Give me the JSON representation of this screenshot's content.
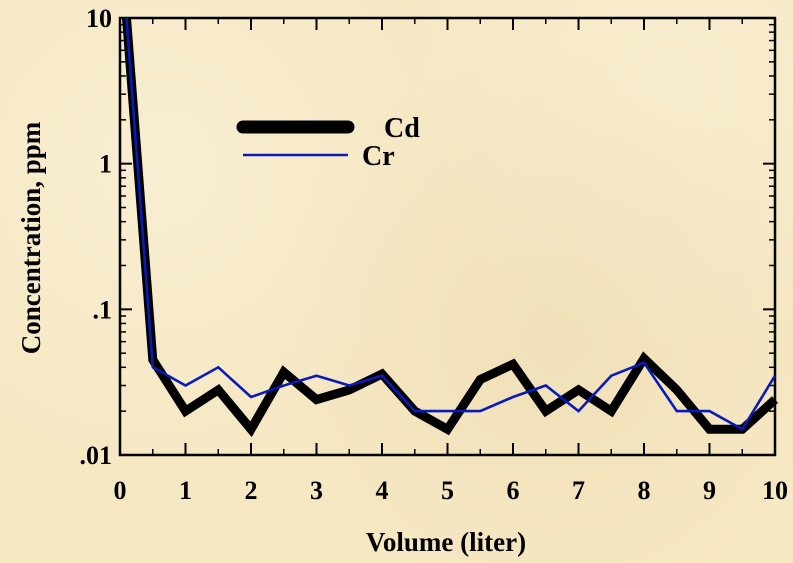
{
  "chart_data": {
    "type": "line",
    "xlabel": "Volume (liter)",
    "ylabel": "Concentration, ppm",
    "xlim": [
      0,
      10
    ],
    "ylim": [
      0.01,
      10
    ],
    "y_scale": "log",
    "grid": false,
    "legend_position": "upper-left",
    "x_ticks": [
      {
        "value": 0,
        "label": "0"
      },
      {
        "value": 1,
        "label": "1"
      },
      {
        "value": 2,
        "label": "2"
      },
      {
        "value": 3,
        "label": "3"
      },
      {
        "value": 4,
        "label": "4"
      },
      {
        "value": 5,
        "label": "5"
      },
      {
        "value": 6,
        "label": "6"
      },
      {
        "value": 7,
        "label": "7"
      },
      {
        "value": 8,
        "label": "8"
      },
      {
        "value": 9,
        "label": "9"
      },
      {
        "value": 10,
        "label": "10"
      }
    ],
    "y_ticks": [
      {
        "value": 0.01,
        "label": ".01"
      },
      {
        "value": 0.1,
        "label": ".1"
      },
      {
        "value": 1,
        "label": "1"
      },
      {
        "value": 10,
        "label": "10"
      }
    ],
    "series": [
      {
        "name": "Cd",
        "color": "#000000",
        "style": "thick",
        "x": [
          0.1,
          0.5,
          1,
          1.5,
          2,
          2.5,
          3,
          3.5,
          4,
          4.5,
          5,
          5.5,
          6,
          6.5,
          7,
          7.5,
          8,
          8.5,
          9,
          9.5,
          10
        ],
        "y": [
          10,
          0.045,
          0.02,
          0.028,
          0.015,
          0.037,
          0.024,
          0.028,
          0.036,
          0.02,
          0.015,
          0.033,
          0.042,
          0.02,
          0.028,
          0.02,
          0.046,
          0.028,
          0.015,
          0.015,
          0.024
        ]
      },
      {
        "name": "Cr",
        "color": "#0a1ab8",
        "style": "thin",
        "x": [
          0.1,
          0.5,
          1,
          1.5,
          2,
          2.5,
          3,
          3.5,
          4,
          4.5,
          5,
          5.5,
          6,
          6.5,
          7,
          7.5,
          8,
          8.5,
          9,
          9.5,
          10
        ],
        "y": [
          10,
          0.04,
          0.03,
          0.04,
          0.025,
          0.03,
          0.035,
          0.03,
          0.035,
          0.02,
          0.02,
          0.02,
          0.025,
          0.03,
          0.02,
          0.035,
          0.043,
          0.02,
          0.02,
          0.015,
          0.035
        ]
      }
    ]
  }
}
